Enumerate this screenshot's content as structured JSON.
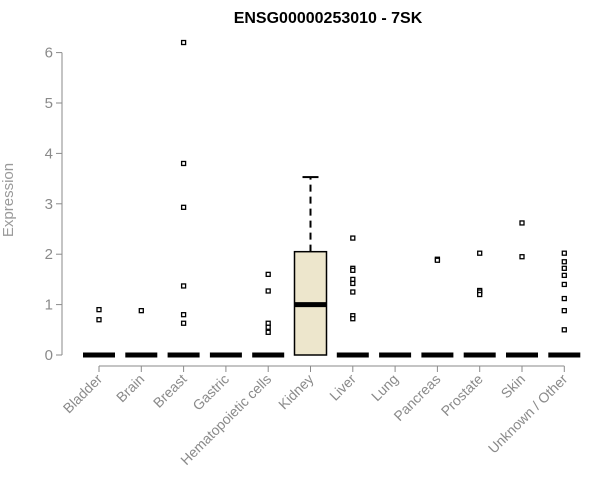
{
  "chart_data": {
    "type": "box",
    "title": "ENSG00000253010 - 7SK",
    "xlabel": "",
    "ylabel": "Expression",
    "ylim": [
      0,
      6.2
    ],
    "yticks": [
      0,
      1,
      2,
      3,
      4,
      5,
      6
    ],
    "grid": false,
    "legend": "none",
    "categories": [
      "Bladder",
      "Brain",
      "Breast",
      "Gastric",
      "Hematopoietic cells",
      "Kidney",
      "Liver",
      "Lung",
      "Pancreas",
      "Prostate",
      "Skin",
      "Unknown / Other"
    ],
    "boxes": [
      {
        "q1": 0,
        "median": 0,
        "q3": 0,
        "whisker_low": 0,
        "whisker_high": 0,
        "outliers": [
          0.9,
          0.7
        ]
      },
      {
        "q1": 0,
        "median": 0,
        "q3": 0,
        "whisker_low": 0,
        "whisker_high": 0,
        "outliers": [
          0.88
        ]
      },
      {
        "q1": 0,
        "median": 0,
        "q3": 0,
        "whisker_low": 0,
        "whisker_high": 0,
        "outliers": [
          6.2,
          3.8,
          2.93,
          1.37,
          0.8,
          0.63
        ]
      },
      {
        "q1": 0,
        "median": 0,
        "q3": 0,
        "whisker_low": 0,
        "whisker_high": 0,
        "outliers": []
      },
      {
        "q1": 0,
        "median": 0,
        "q3": 0,
        "whisker_low": 0,
        "whisker_high": 0,
        "outliers": [
          1.6,
          1.27,
          0.63,
          0.55,
          0.45
        ]
      },
      {
        "q1": 0,
        "median": 1.0,
        "q3": 2.05,
        "whisker_low": 0,
        "whisker_high": 3.53,
        "outliers": []
      },
      {
        "q1": 0,
        "median": 0,
        "q3": 0,
        "whisker_low": 0,
        "whisker_high": 0,
        "outliers": [
          2.32,
          1.72,
          1.68,
          1.5,
          1.42,
          1.25,
          0.78,
          0.72
        ]
      },
      {
        "q1": 0,
        "median": 0,
        "q3": 0,
        "whisker_low": 0,
        "whisker_high": 0,
        "outliers": []
      },
      {
        "q1": 0,
        "median": 0,
        "q3": 0,
        "whisker_low": 0,
        "whisker_high": 0,
        "outliers": [
          1.9,
          1.88
        ]
      },
      {
        "q1": 0,
        "median": 0,
        "q3": 0,
        "whisker_low": 0,
        "whisker_high": 0,
        "outliers": [
          2.02,
          1.28,
          1.25,
          1.2
        ]
      },
      {
        "q1": 0,
        "median": 0,
        "q3": 0,
        "whisker_low": 0,
        "whisker_high": 0,
        "outliers": [
          2.62,
          1.95
        ]
      },
      {
        "q1": 0,
        "median": 0,
        "q3": 0,
        "whisker_low": 0,
        "whisker_high": 0,
        "outliers": [
          2.02,
          1.85,
          1.72,
          1.58,
          1.4,
          1.12,
          0.88,
          0.5
        ]
      }
    ],
    "box_fill": "#ede6cc",
    "axis_color": "#8a8a8a"
  }
}
